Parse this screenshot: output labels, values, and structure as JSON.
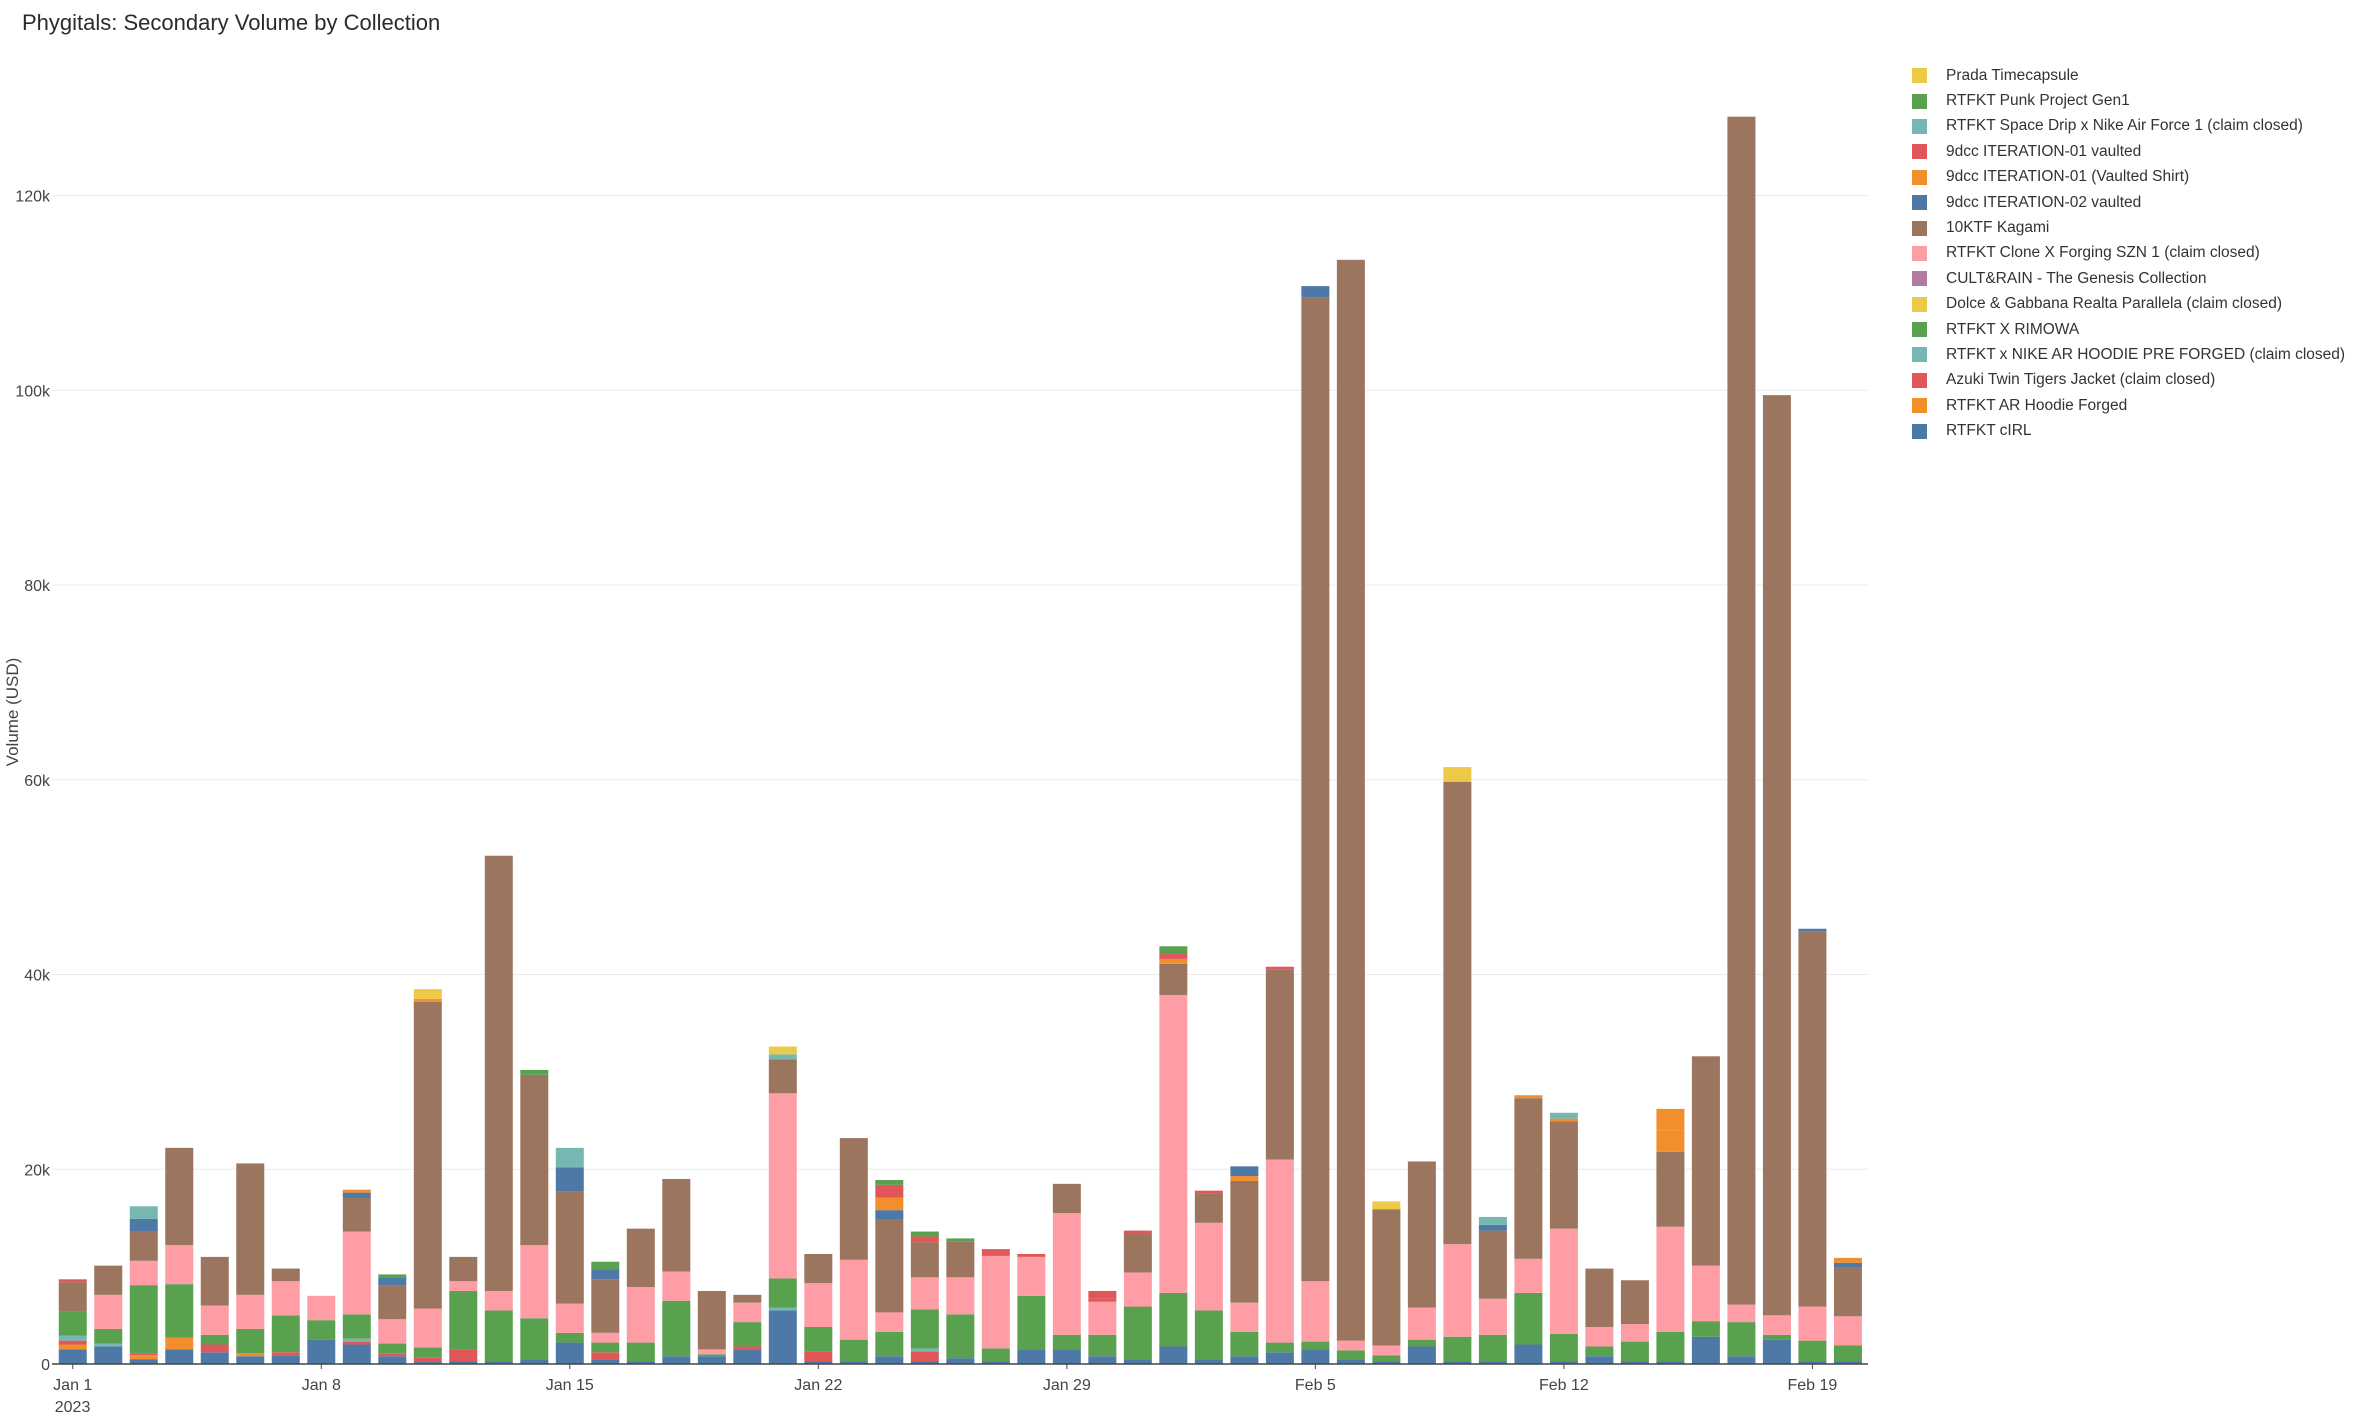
{
  "chart_data": {
    "type": "bar",
    "stacked": true,
    "title": "Phygitals: Secondary Volume by Collection",
    "ylabel": "Volume (USD)",
    "xlabel": "",
    "ylim": [
      0,
      137000
    ],
    "y_ticks": [
      {
        "value": 0,
        "label": "0"
      },
      {
        "value": 20000,
        "label": "20k"
      },
      {
        "value": 40000,
        "label": "40k"
      },
      {
        "value": 60000,
        "label": "60k"
      },
      {
        "value": 80000,
        "label": "80k"
      },
      {
        "value": 100000,
        "label": "100k"
      },
      {
        "value": 120000,
        "label": "120k"
      }
    ],
    "x_ticks": [
      {
        "index": 0,
        "label": "Jan 1",
        "sublabel": "2023"
      },
      {
        "index": 7,
        "label": "Jan 8"
      },
      {
        "index": 14,
        "label": "Jan 15"
      },
      {
        "index": 21,
        "label": "Jan 22"
      },
      {
        "index": 28,
        "label": "Jan 29"
      },
      {
        "index": 35,
        "label": "Feb 5"
      },
      {
        "index": 42,
        "label": "Feb 12"
      },
      {
        "index": 49,
        "label": "Feb 19"
      }
    ],
    "grid": true,
    "legend_position": "right",
    "dates": [
      "2023-01-01",
      "2023-01-02",
      "2023-01-03",
      "2023-01-04",
      "2023-01-05",
      "2023-01-06",
      "2023-01-07",
      "2023-01-08",
      "2023-01-09",
      "2023-01-10",
      "2023-01-11",
      "2023-01-12",
      "2023-01-13",
      "2023-01-14",
      "2023-01-15",
      "2023-01-16",
      "2023-01-17",
      "2023-01-18",
      "2023-01-19",
      "2023-01-20",
      "2023-01-21",
      "2023-01-22",
      "2023-01-23",
      "2023-01-24",
      "2023-01-25",
      "2023-01-26",
      "2023-01-27",
      "2023-01-28",
      "2023-01-29",
      "2023-01-30",
      "2023-01-31",
      "2023-02-01",
      "2023-02-02",
      "2023-02-03",
      "2023-02-04",
      "2023-02-05",
      "2023-02-06",
      "2023-02-07",
      "2023-02-08",
      "2023-02-09",
      "2023-02-10",
      "2023-02-11",
      "2023-02-12",
      "2023-02-13",
      "2023-02-14",
      "2023-02-15",
      "2023-02-16",
      "2023-02-17",
      "2023-02-18",
      "2023-02-19",
      "2023-02-20"
    ],
    "series": [
      {
        "name": "RTFKT cIRL",
        "color": "#4e79a7",
        "values": [
          1500,
          1800,
          500,
          1500,
          1200,
          800,
          900,
          2500,
          2000,
          800,
          200,
          300,
          300,
          500,
          2200,
          500,
          300,
          800,
          800,
          1500,
          5500,
          300,
          300,
          800,
          300,
          600,
          300,
          1500,
          1500,
          800,
          500,
          1800,
          500,
          800,
          1200,
          1500,
          500,
          300,
          1800,
          300,
          300,
          2000,
          300,
          800,
          300,
          300,
          2800,
          800,
          2500,
          300,
          300
        ]
      },
      {
        "name": "RTFKT AR Hoodie Forged",
        "color": "#f28e2b",
        "values": [
          500,
          0,
          400,
          1200,
          0,
          300,
          0,
          0,
          0,
          0,
          0,
          0,
          0,
          0,
          0,
          0,
          0,
          0,
          0,
          0,
          0,
          0,
          0,
          0,
          0,
          0,
          0,
          0,
          0,
          0,
          0,
          0,
          0,
          0,
          0,
          0,
          0,
          0,
          0,
          0,
          0,
          0,
          0,
          0,
          0,
          0,
          0,
          0,
          0,
          0,
          0
        ]
      },
      {
        "name": "Azuki Twin Tigers Jacket (claim closed)",
        "color": "#e15759",
        "values": [
          400,
          0,
          200,
          0,
          800,
          0,
          300,
          0,
          300,
          300,
          500,
          1200,
          0,
          0,
          0,
          700,
          0,
          0,
          0,
          300,
          0,
          1000,
          0,
          0,
          1000,
          0,
          0,
          0,
          0,
          0,
          0,
          0,
          0,
          0,
          0,
          0,
          0,
          0,
          0,
          0,
          0,
          0,
          0,
          0,
          0,
          0,
          0,
          0,
          0,
          0,
          0
        ]
      },
      {
        "name": "RTFKT x NIKE AR HOODIE PRE FORGED (claim closed)",
        "color": "#76b7b2",
        "values": [
          500,
          300,
          0,
          0,
          0,
          0,
          0,
          0,
          300,
          0,
          0,
          0,
          0,
          0,
          0,
          0,
          0,
          0,
          0,
          0,
          300,
          0,
          0,
          0,
          300,
          0,
          0,
          0,
          0,
          0,
          0,
          0,
          0,
          0,
          0,
          0,
          0,
          0,
          0,
          0,
          0,
          0,
          0,
          0,
          0,
          0,
          0,
          0,
          0,
          0,
          0
        ]
      },
      {
        "name": "RTFKT X RIMOWA",
        "color": "#59a14f",
        "values": [
          2500,
          1500,
          7000,
          5500,
          1000,
          2500,
          3800,
          2000,
          2500,
          1000,
          1000,
          6000,
          5200,
          4200,
          1000,
          1000,
          1900,
          5700,
          200,
          2500,
          3000,
          2500,
          2200,
          2500,
          4000,
          4500,
          1300,
          5500,
          1500,
          2200,
          5400,
          5500,
          5000,
          2500,
          1000,
          800,
          900,
          600,
          700,
          2500,
          2700,
          5300,
          2800,
          1000,
          2000,
          3000,
          1600,
          3500,
          500,
          2100,
          1600
        ]
      },
      {
        "name": "Dolce & Gabbana Realta Parallela (claim closed)",
        "color": "#edc948",
        "values": [
          0,
          0,
          0,
          0,
          0,
          0,
          0,
          0,
          0,
          0,
          0,
          0,
          0,
          0,
          0,
          0,
          0,
          0,
          0,
          0,
          0,
          0,
          0,
          0,
          0,
          0,
          0,
          0,
          0,
          0,
          0,
          0,
          0,
          0,
          0,
          0,
          0,
          0,
          0,
          0,
          0,
          0,
          0,
          0,
          0,
          0,
          0,
          0,
          0,
          0,
          0
        ]
      },
      {
        "name": "CULT&RAIN - The Genesis Collection",
        "color": "#b07aa1",
        "values": [
          0,
          0,
          0,
          0,
          0,
          0,
          0,
          0,
          0,
          0,
          0,
          0,
          0,
          0,
          0,
          0,
          0,
          0,
          0,
          0,
          0,
          0,
          0,
          0,
          0,
          0,
          0,
          0,
          0,
          0,
          0,
          0,
          0,
          0,
          0,
          0,
          0,
          0,
          0,
          0,
          0,
          0,
          0,
          0,
          0,
          0,
          0,
          0,
          0,
          0,
          0
        ]
      },
      {
        "name": "RTFKT Clone X Forging SZN 1 (claim closed)",
        "color": "#ff9da7",
        "values": [
          0,
          3500,
          2500,
          4000,
          3000,
          3500,
          3500,
          2500,
          8500,
          2500,
          4000,
          1000,
          2000,
          7500,
          3000,
          1000,
          5700,
          3000,
          500,
          2000,
          19000,
          4500,
          8200,
          2000,
          3300,
          3800,
          9500,
          4000,
          12500,
          3400,
          3500,
          30600,
          9000,
          3000,
          18800,
          6200,
          1000,
          1000,
          3300,
          9500,
          3700,
          3500,
          10800,
          2000,
          1800,
          10800,
          5700,
          1800,
          2000,
          3500,
          3000
        ]
      },
      {
        "name": "10KTF Kagami",
        "color": "#9c755f",
        "values": [
          3000,
          3000,
          3000,
          10000,
          5000,
          13500,
          1300,
          0,
          3500,
          3500,
          31500,
          2500,
          44700,
          17500,
          11500,
          5500,
          6000,
          9500,
          6000,
          800,
          3500,
          3000,
          12500,
          9500,
          3600,
          3700,
          0,
          0,
          3000,
          0,
          4000,
          3200,
          3000,
          12500,
          19500,
          101000,
          111000,
          14000,
          15000,
          47500,
          7000,
          16500,
          11000,
          6000,
          4500,
          7700,
          21500,
          122000,
          94500,
          38500,
          5000
        ]
      },
      {
        "name": "9dcc ITERATION-02 vaulted",
        "color": "#4e79a7",
        "values": [
          0,
          0,
          1300,
          0,
          0,
          0,
          0,
          0,
          500,
          800,
          0,
          0,
          0,
          0,
          2500,
          1000,
          0,
          0,
          0,
          0,
          0,
          0,
          0,
          1000,
          0,
          0,
          0,
          0,
          0,
          0,
          0,
          0,
          0,
          0,
          0,
          1200,
          0,
          0,
          0,
          0,
          600,
          0,
          0,
          0,
          0,
          0,
          0,
          0,
          0,
          300,
          500
        ]
      },
      {
        "name": "9dcc ITERATION-01 (Vaulted Shirt)",
        "color": "#f28e2b",
        "values": [
          0,
          0,
          0,
          0,
          0,
          0,
          0,
          0,
          0,
          0,
          300,
          0,
          0,
          0,
          0,
          0,
          0,
          0,
          0,
          0,
          0,
          0,
          0,
          1300,
          0,
          0,
          0,
          0,
          0,
          0,
          0,
          500,
          0,
          500,
          0,
          0,
          0,
          0,
          0,
          0,
          0,
          0,
          300,
          0,
          0,
          2200,
          0,
          0,
          0,
          0,
          500
        ]
      },
      {
        "name": "9dcc ITERATION-01 vaulted",
        "color": "#e15759",
        "values": [
          0,
          0,
          0,
          0,
          0,
          0,
          0,
          0,
          0,
          0,
          0,
          0,
          0,
          0,
          0,
          0,
          0,
          0,
          0,
          0,
          0,
          0,
          0,
          1300,
          600,
          0,
          400,
          0,
          0,
          300,
          0,
          500,
          0,
          0,
          300,
          0,
          0,
          0,
          0,
          0,
          0,
          0,
          0,
          0,
          0,
          0,
          0,
          0,
          0,
          0,
          0
        ]
      },
      {
        "name": "RTFKT Space Drip x Nike Air Force 1 (claim closed)",
        "color": "#76b7b2",
        "values": [
          0,
          0,
          1300,
          0,
          0,
          0,
          0,
          0,
          0,
          0,
          0,
          0,
          0,
          0,
          0,
          0,
          0,
          0,
          0,
          0,
          0,
          0,
          0,
          0,
          0,
          0,
          0,
          0,
          0,
          0,
          0,
          0,
          0,
          0,
          0,
          0,
          0,
          0,
          0,
          0,
          0,
          0,
          0,
          0,
          0,
          0,
          0,
          0,
          0,
          0,
          0
        ]
      },
      {
        "name": "RTFKT Punk Project Gen1",
        "color": "#59a14f",
        "values": [
          0,
          0,
          0,
          0,
          0,
          0,
          0,
          0,
          0,
          0,
          0,
          0,
          0,
          0,
          0,
          0,
          0,
          0,
          0,
          0,
          0,
          0,
          0,
          0,
          500,
          0,
          0,
          0,
          0,
          0,
          0,
          0,
          0,
          0,
          0,
          0,
          0,
          0,
          0,
          0,
          0,
          0,
          0,
          0,
          0,
          0,
          0,
          0,
          0,
          0,
          0
        ]
      },
      {
        "name": "Prada Timecapsule",
        "color": "#edc948",
        "values": [
          0,
          0,
          0,
          0,
          0,
          0,
          0,
          0,
          0,
          0,
          0,
          0,
          0,
          0,
          0,
          0,
          0,
          0,
          0,
          0,
          0,
          0,
          0,
          0,
          0,
          0,
          0,
          0,
          0,
          0,
          0,
          0,
          0,
          0,
          0,
          0,
          0,
          0,
          0,
          0,
          0,
          0,
          0,
          0,
          0,
          0,
          0,
          0,
          0,
          0,
          0
        ]
      }
    ],
    "legend": [
      {
        "label": "Prada Timecapsule",
        "color": "#edc948"
      },
      {
        "label": "RTFKT Punk Project Gen1",
        "color": "#59a14f"
      },
      {
        "label": "RTFKT Space Drip x Nike Air Force 1 (claim closed)",
        "color": "#76b7b2"
      },
      {
        "label": "9dcc ITERATION-01 vaulted",
        "color": "#e15759"
      },
      {
        "label": "9dcc ITERATION-01 (Vaulted Shirt)",
        "color": "#f28e2b"
      },
      {
        "label": "9dcc ITERATION-02 vaulted",
        "color": "#4e79a7"
      },
      {
        "label": "10KTF Kagami",
        "color": "#9c755f"
      },
      {
        "label": "RTFKT Clone X Forging SZN 1 (claim closed)",
        "color": "#ff9da7"
      },
      {
        "label": "CULT&RAIN - The Genesis Collection",
        "color": "#b07aa1"
      },
      {
        "label": "Dolce & Gabbana Realta Parallela (claim closed)",
        "color": "#edc948"
      },
      {
        "label": "RTFKT X RIMOWA",
        "color": "#59a14f"
      },
      {
        "label": "RTFKT x NIKE AR HOODIE PRE FORGED (claim closed)",
        "color": "#76b7b2"
      },
      {
        "label": "Azuki Twin Tigers Jacket (claim closed)",
        "color": "#e15759"
      },
      {
        "label": "RTFKT AR Hoodie Forged",
        "color": "#f28e2b"
      },
      {
        "label": "RTFKT cIRL",
        "color": "#4e79a7"
      }
    ],
    "top_segments": [
      {
        "index": 0,
        "value": 300,
        "color": "#e15759"
      },
      {
        "index": 8,
        "value": 300,
        "color": "#f28e2b"
      },
      {
        "index": 9,
        "value": 300,
        "color": "#59a14f"
      },
      {
        "index": 10,
        "value": 1000,
        "color": "#edc948"
      },
      {
        "index": 13,
        "value": 500,
        "color": "#59a14f"
      },
      {
        "index": 14,
        "value": 2000,
        "color": "#76b7b2"
      },
      {
        "index": 15,
        "value": 800,
        "color": "#59a14f"
      },
      {
        "index": 20,
        "value": 500,
        "color": "#76b7b2"
      },
      {
        "index": 20,
        "value": 800,
        "color": "#edc948"
      },
      {
        "index": 23,
        "value": 500,
        "color": "#59a14f"
      },
      {
        "index": 25,
        "value": 300,
        "color": "#59a14f"
      },
      {
        "index": 26,
        "value": 300,
        "color": "#e15759"
      },
      {
        "index": 27,
        "value": 300,
        "color": "#e15759"
      },
      {
        "index": 29,
        "value": 800,
        "color": "#e15759"
      },
      {
        "index": 30,
        "value": 300,
        "color": "#e15759"
      },
      {
        "index": 31,
        "value": 800,
        "color": "#59a14f"
      },
      {
        "index": 32,
        "value": 300,
        "color": "#e15759"
      },
      {
        "index": 33,
        "value": 1000,
        "color": "#4e79a7"
      },
      {
        "index": 37,
        "value": 800,
        "color": "#edc948"
      },
      {
        "index": 39,
        "value": 1500,
        "color": "#edc948"
      },
      {
        "index": 40,
        "value": 800,
        "color": "#76b7b2"
      },
      {
        "index": 41,
        "value": 300,
        "color": "#f28e2b"
      },
      {
        "index": 42,
        "value": 600,
        "color": "#76b7b2"
      },
      {
        "index": 45,
        "value": 2200,
        "color": "#f28e2b"
      }
    ]
  }
}
